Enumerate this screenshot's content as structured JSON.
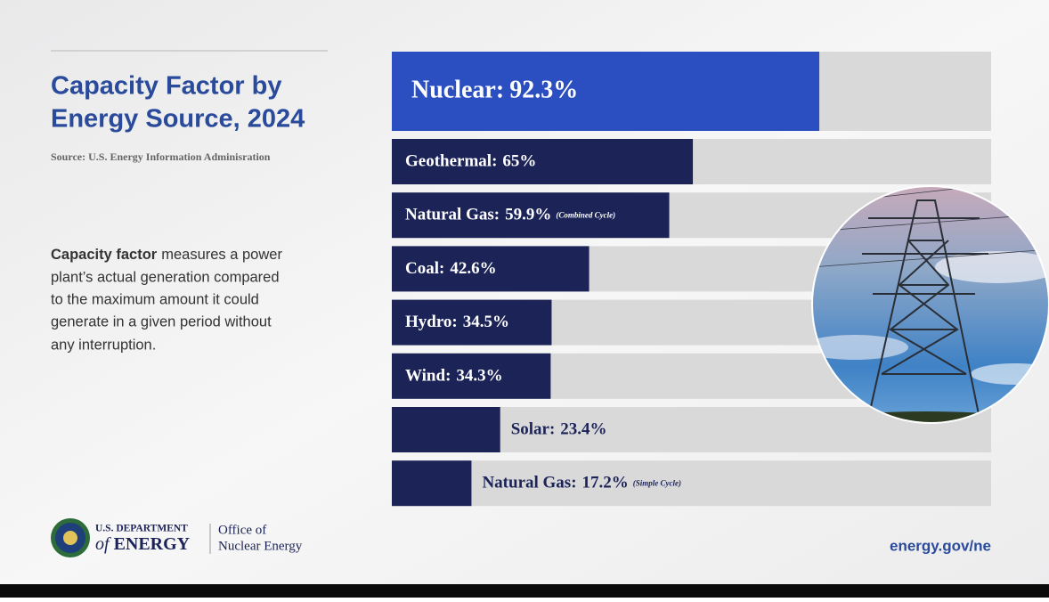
{
  "chart_data": {
    "type": "bar",
    "title": [
      "Capacity Factor by",
      "Energy Source, 2024"
    ],
    "source": "Source: U.S. Energy Information Adminisration",
    "description": {
      "bold": "Capacity factor",
      "lines": [
        "measures a power",
        "plant’s actual generation compared",
        "to the maximum amount it could",
        "generate in a given period without",
        "any interruption."
      ]
    },
    "categories": [
      "Nuclear:",
      "Geothermal:",
      "Natural Gas:",
      "Coal:",
      "Hydro:",
      "Wind:",
      "Solar:",
      "Natural Gas:"
    ],
    "values": [
      92.3,
      65,
      59.9,
      42.6,
      34.5,
      34.3,
      23.4,
      17.2
    ],
    "value_labels": [
      "92.3%",
      "65%",
      "59.9%",
      "42.6%",
      "34.5%",
      "34.3%",
      "23.4%",
      "17.2%"
    ],
    "category_notes": [
      null,
      null,
      "(Combined Cycle)",
      null,
      null,
      null,
      null,
      "(Simple Cycle)"
    ],
    "colors": [
      "#2b4fc1",
      "#1b2357",
      "#1b2357",
      "#1b2357",
      "#1b2357",
      "#1b2357",
      "#1b2357",
      "#1b2357"
    ],
    "xlim": [
      0,
      129.4
    ],
    "footer": {
      "department": [
        "U.S. DEPARTMENT",
        "of",
        "ENERGY"
      ],
      "office": [
        "Office of",
        "Nuclear Energy"
      ],
      "url": "energy.gov/ne"
    }
  }
}
